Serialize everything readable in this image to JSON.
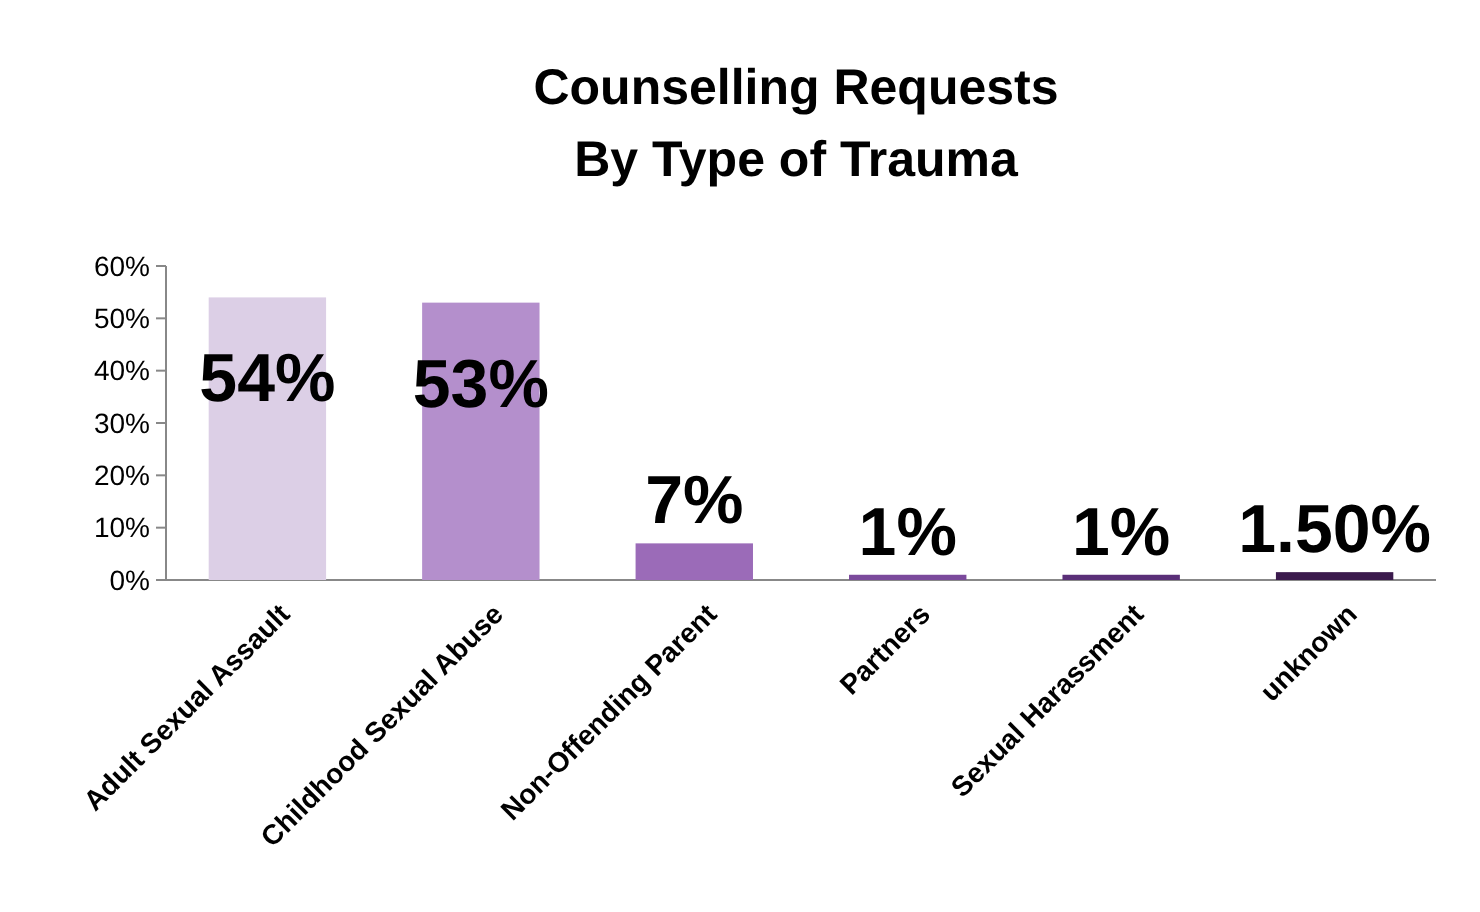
{
  "chart_data": {
    "type": "bar",
    "title": "Counselling Requests\nBy Type of Trauma",
    "categories": [
      "Adult Sexual Assault",
      "Childhood Sexual Abuse",
      "Non-Offending Parent",
      "Partners",
      "Sexual Harassment",
      "unknown"
    ],
    "values": [
      54,
      53,
      7,
      1,
      1,
      1.5
    ],
    "colors": [
      "#dccfe6",
      "#b48fcc",
      "#9b6bb8",
      "#7b4a9c",
      "#5a2f78",
      "#3b1a4d"
    ],
    "value_labels": [
      "54%",
      "53%",
      "7%",
      "1%",
      "1%",
      "1.50%"
    ],
    "ylim": [
      0,
      60
    ],
    "yticks": [
      {
        "value": 0,
        "label": "0%"
      },
      {
        "value": 10,
        "label": "10%"
      },
      {
        "value": 20,
        "label": "20%"
      },
      {
        "value": 30,
        "label": "30%"
      },
      {
        "value": 40,
        "label": "40%"
      },
      {
        "value": 50,
        "label": "50%"
      },
      {
        "value": 60,
        "label": "60%"
      }
    ]
  }
}
